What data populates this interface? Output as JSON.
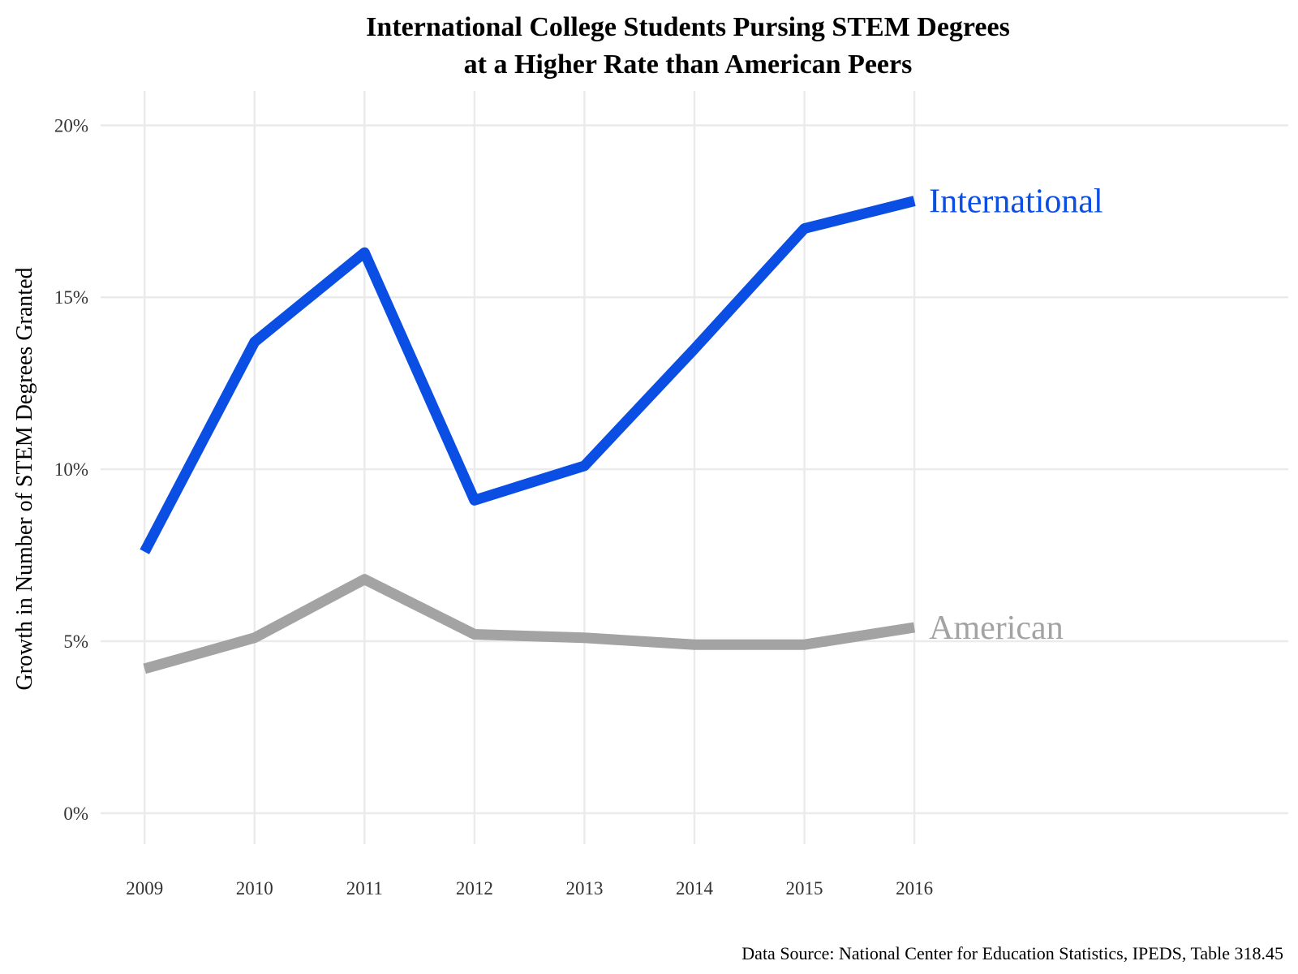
{
  "chart_data": {
    "type": "line",
    "title": "International College Students Pursing STEM Degrees",
    "subtitle": "at a Higher Rate than American Peers",
    "xlabel": "",
    "ylabel": "Growth in Number of STEM Degrees Granted",
    "x": [
      2009,
      2010,
      2011,
      2012,
      2013,
      2014,
      2015,
      2016
    ],
    "x_tick_labels": [
      "2009",
      "2010",
      "2011",
      "2012",
      "2013",
      "2014",
      "2015",
      "2016"
    ],
    "y_ticks": [
      0,
      5,
      10,
      15,
      20
    ],
    "y_tick_labels": [
      "0%",
      "5%",
      "10%",
      "15%",
      "20%"
    ],
    "xlim": [
      2008.6,
      2019.4
    ],
    "ylim": [
      -0.9,
      21.0
    ],
    "grid": true,
    "legend": "direct labels at line ends",
    "series": [
      {
        "name": "International",
        "color": "#0a4ee4",
        "values": [
          7.6,
          13.7,
          16.3,
          9.1,
          10.1,
          13.5,
          17.0,
          17.8
        ]
      },
      {
        "name": "American",
        "color": "#a3a3a3",
        "values": [
          4.2,
          5.1,
          6.8,
          5.2,
          5.1,
          4.9,
          4.9,
          5.4
        ]
      }
    ],
    "caption": "Data Source: National Center for Education Statistics, IPEDS, Table 318.45"
  }
}
